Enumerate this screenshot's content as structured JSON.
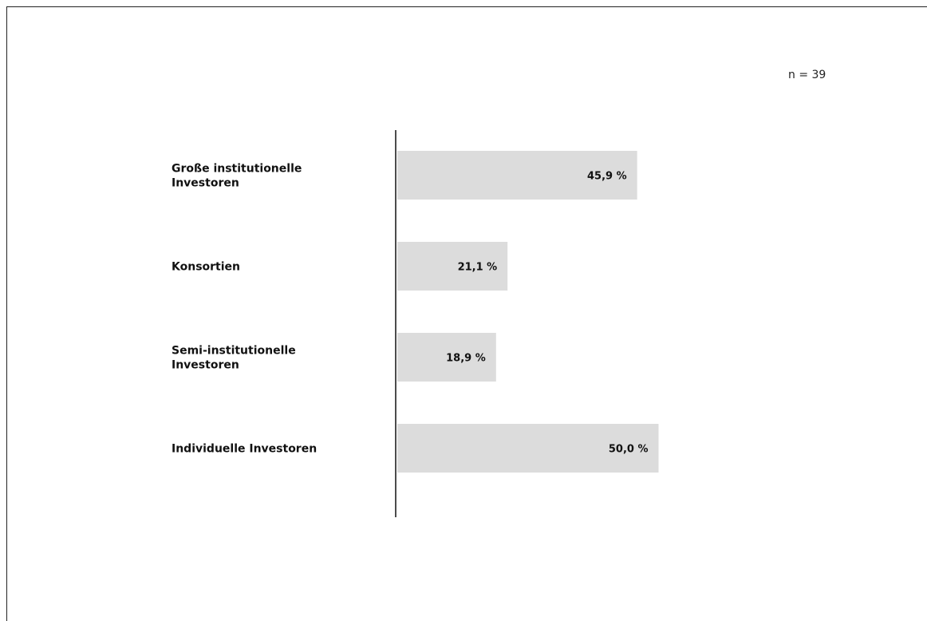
{
  "chart_data": {
    "type": "bar",
    "orientation": "horizontal",
    "annotation": "n = 39",
    "categories": [
      [
        "Große institutionelle",
        "Investoren"
      ],
      [
        "Konsortien"
      ],
      [
        "Semi-institutionelle",
        "Investoren"
      ],
      [
        "Individuelle Investoren"
      ]
    ],
    "values": [
      45.9,
      21.1,
      18.9,
      50.0
    ],
    "value_labels": [
      "45,9 %",
      "21,1 %",
      "18,9 %",
      "50,0 %"
    ],
    "xlim": [
      0,
      100
    ],
    "bar_color": "#dcdcdc",
    "grid": false
  }
}
